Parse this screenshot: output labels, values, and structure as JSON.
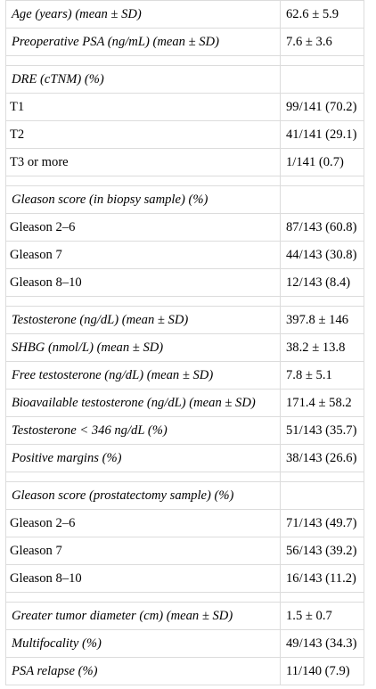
{
  "rows": [
    {
      "kind": "stat",
      "label": "Age (years) (mean ± SD)",
      "value": "62.6 ± 5.9"
    },
    {
      "kind": "stat",
      "label": "Preoperative PSA (ng/mL) (mean ± SD)",
      "value": "7.6 ± 3.6"
    },
    {
      "kind": "gap"
    },
    {
      "kind": "header",
      "label": "DRE (cTNM) (%)"
    },
    {
      "kind": "sub",
      "label": "T1",
      "value": "99/141 (70.2)"
    },
    {
      "kind": "sub",
      "label": "T2",
      "value": "41/141 (29.1)"
    },
    {
      "kind": "sub",
      "label": "T3 or more",
      "value": "1/141 (0.7)"
    },
    {
      "kind": "gap"
    },
    {
      "kind": "header",
      "label": "Gleason score (in biopsy sample) (%)"
    },
    {
      "kind": "sub",
      "label": "Gleason 2–6",
      "value": "87/143 (60.8)"
    },
    {
      "kind": "sub",
      "label": "Gleason 7",
      "value": "44/143 (30.8)"
    },
    {
      "kind": "sub",
      "label": "Gleason 8–10",
      "value": "12/143 (8.4)"
    },
    {
      "kind": "gap"
    },
    {
      "kind": "stat",
      "label": "Testosterone (ng/dL) (mean ± SD)",
      "value": "397.8 ± 146"
    },
    {
      "kind": "stat",
      "label": "SHBG (nmol/L) (mean ± SD)",
      "value": "38.2 ± 13.8"
    },
    {
      "kind": "stat",
      "label": "Free testosterone (ng/dL) (mean ± SD)",
      "value": "7.8 ± 5.1"
    },
    {
      "kind": "stat",
      "label": "Bioavailable testosterone (ng/dL) (mean ± SD)",
      "value": "171.4 ± 58.2"
    },
    {
      "kind": "stat",
      "label": "Testosterone < 346 ng/dL (%)",
      "value": "51/143 (35.7)"
    },
    {
      "kind": "stat",
      "label": "Positive margins (%)",
      "value": "38/143 (26.6)"
    },
    {
      "kind": "gap"
    },
    {
      "kind": "header",
      "label": "Gleason score (prostatectomy sample) (%)"
    },
    {
      "kind": "sub",
      "label": "Gleason 2–6",
      "value": "71/143 (49.7)"
    },
    {
      "kind": "sub",
      "label": "Gleason 7",
      "value": "56/143 (39.2)"
    },
    {
      "kind": "sub",
      "label": "Gleason 8–10",
      "value": "16/143 (11.2)"
    },
    {
      "kind": "gap"
    },
    {
      "kind": "stat",
      "label": "Greater tumor diameter (cm) (mean ± SD)",
      "value": "1.5 ± 0.7"
    },
    {
      "kind": "stat",
      "label": "Multifocality (%)",
      "value": "49/143 (34.3)"
    },
    {
      "kind": "stat",
      "label": "PSA relapse (%)",
      "value": "11/140 (7.9)"
    }
  ]
}
